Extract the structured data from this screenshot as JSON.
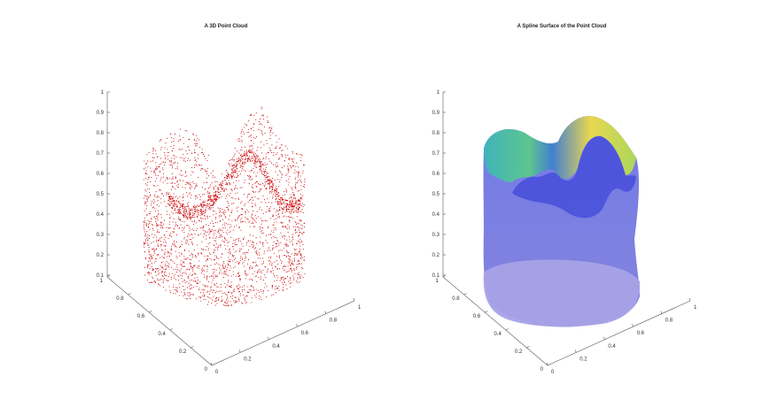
{
  "chart_data": [
    {
      "type": "scatter",
      "title": "A 3D Point Cloud",
      "projection": "3d",
      "grid": false,
      "marker_color": "#cc0000",
      "z_ticks": [
        "0.1",
        "0.2",
        "0.3",
        "0.4",
        "0.5",
        "0.6",
        "0.7",
        "0.8",
        "0.9",
        "1"
      ],
      "left_ticks": [
        "0",
        "0.2",
        "0.4",
        "0.6",
        "0.8",
        "1"
      ],
      "right_ticks": [
        "0",
        "0.2",
        "0.4",
        "0.6",
        "0.8",
        "1"
      ],
      "zlim": [
        0.1,
        1
      ],
      "xlim": [
        0,
        1
      ],
      "ylim": [
        0,
        1
      ]
    },
    {
      "type": "surface",
      "title": "A Spline Surface of the Point Cloud",
      "projection": "3d",
      "grid": false,
      "colormap": [
        "#3b4fd6",
        "#2fa6c9",
        "#47c08c",
        "#f2df3a"
      ],
      "z_ticks": [
        "0.1",
        "0.2",
        "0.3",
        "0.4",
        "0.5",
        "0.6",
        "0.7",
        "0.8",
        "0.9",
        "1"
      ],
      "left_ticks": [
        "0",
        "0.2",
        "0.4",
        "0.6",
        "0.8",
        "1"
      ],
      "right_ticks": [
        "0",
        "0.2",
        "0.4",
        "0.6",
        "0.8",
        "1"
      ],
      "zlim": [
        0.1,
        1
      ],
      "xlim": [
        0,
        1
      ],
      "ylim": [
        0,
        1
      ]
    }
  ]
}
